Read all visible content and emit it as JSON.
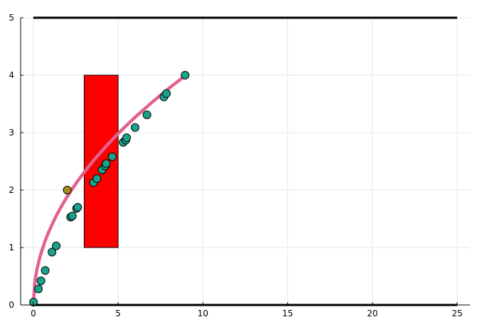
{
  "chart_data": {
    "type": "scatter",
    "title": "",
    "xlabel": "",
    "ylabel": "",
    "xlim": [
      -0.75,
      25.75
    ],
    "ylim": [
      0,
      5
    ],
    "grid": true,
    "legend": "none",
    "x_ticks": [
      0,
      5,
      10,
      15,
      20,
      25
    ],
    "y_ticks": [
      0,
      1,
      2,
      3,
      4,
      5
    ],
    "x_tick_labels": [
      "0",
      "5",
      "10",
      "15",
      "20",
      "25"
    ],
    "y_tick_labels": [
      "0",
      "1",
      "2",
      "3",
      "4",
      "5"
    ],
    "colors": {
      "curve": "#e26190",
      "points": "#1aa28c",
      "outlier": "#a38e1a",
      "rect": "#ff0000",
      "hline": "#000000",
      "grid": "#e6e6e6"
    },
    "rectangle": {
      "x0": 3,
      "x1": 5,
      "y0": 1,
      "y1": 4
    },
    "hlines": [
      0,
      5
    ],
    "hline_x": [
      0,
      25
    ],
    "curve": {
      "function": "sqrt",
      "x_min": 0,
      "x_max": 9
    },
    "points": [
      {
        "x": 0.01,
        "y": 0.05
      },
      {
        "x": 0.3,
        "y": 0.28
      },
      {
        "x": 0.45,
        "y": 0.42
      },
      {
        "x": 0.7,
        "y": 0.6
      },
      {
        "x": 1.1,
        "y": 0.92
      },
      {
        "x": 1.35,
        "y": 1.03
      },
      {
        "x": 2.2,
        "y": 1.53
      },
      {
        "x": 2.3,
        "y": 1.55
      },
      {
        "x": 2.55,
        "y": 1.68
      },
      {
        "x": 2.62,
        "y": 1.7
      },
      {
        "x": 3.55,
        "y": 2.13
      },
      {
        "x": 3.75,
        "y": 2.2
      },
      {
        "x": 4.05,
        "y": 2.35
      },
      {
        "x": 4.25,
        "y": 2.42
      },
      {
        "x": 4.3,
        "y": 2.46
      },
      {
        "x": 4.65,
        "y": 2.58
      },
      {
        "x": 5.3,
        "y": 2.83
      },
      {
        "x": 5.45,
        "y": 2.87
      },
      {
        "x": 5.5,
        "y": 2.91
      },
      {
        "x": 6.0,
        "y": 3.09
      },
      {
        "x": 6.7,
        "y": 3.31
      },
      {
        "x": 7.7,
        "y": 3.62
      },
      {
        "x": 7.85,
        "y": 3.68
      },
      {
        "x": 8.95,
        "y": 4.0
      }
    ],
    "outlier": {
      "x": 2,
      "y": 2
    }
  }
}
